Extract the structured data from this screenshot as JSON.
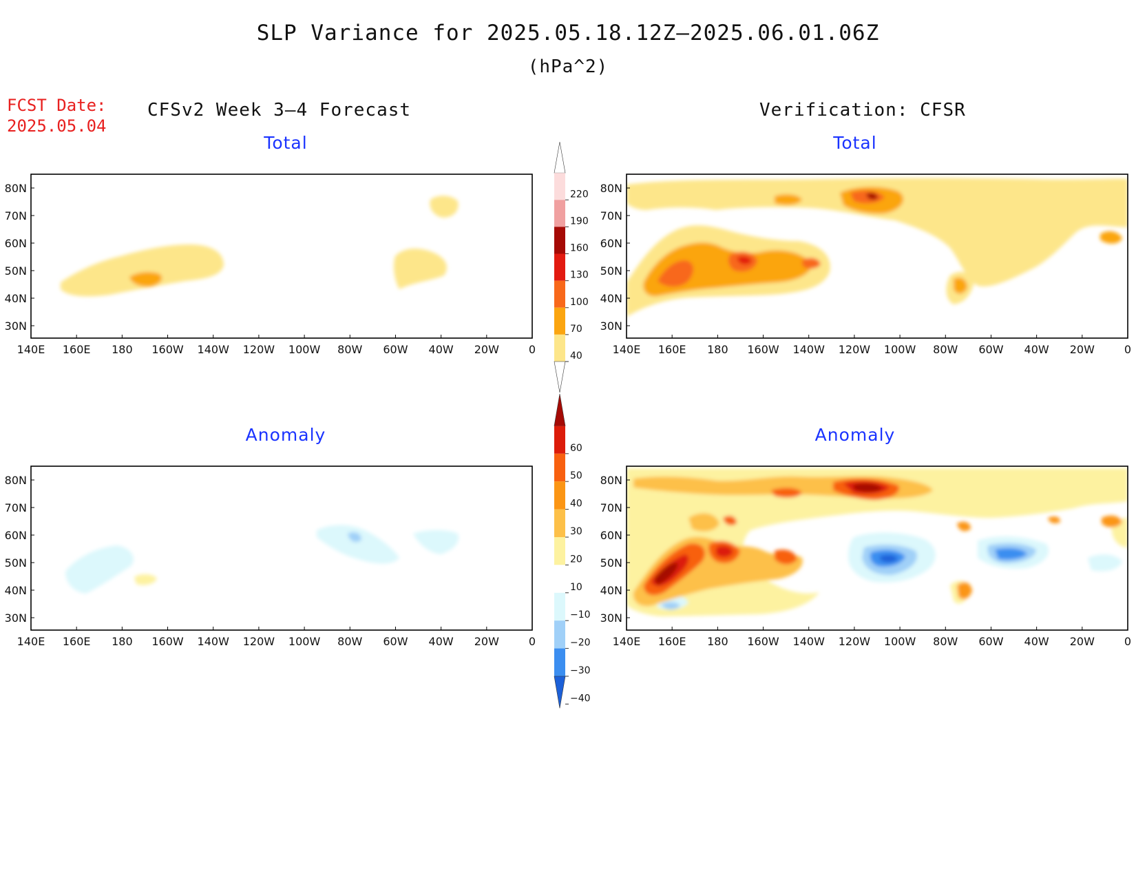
{
  "title": "SLP Variance for 2025.05.18.12Z–2025.06.01.06Z",
  "units": "(hPa^2)",
  "fcst_date_label": "FCST Date:",
  "fcst_date_value": "2025.05.04",
  "left_heading": "CFSv2 Week 3–4 Forecast",
  "right_heading": "Verification: CFSR",
  "panels": {
    "top_left_title": "Total",
    "top_right_title": "Total",
    "bottom_left_title": "Anomaly",
    "bottom_right_title": "Anomaly"
  },
  "lat_labels": [
    "80N",
    "70N",
    "60N",
    "50N",
    "40N",
    "30N"
  ],
  "lon_labels": [
    "140E",
    "160E",
    "180",
    "160W",
    "140W",
    "120W",
    "100W",
    "80W",
    "60W",
    "40W",
    "20W",
    "0"
  ],
  "colorbar_total": {
    "levels": [
      "40",
      "70",
      "100",
      "130",
      "160",
      "190",
      "220"
    ],
    "colors": [
      "#fde68a",
      "#fba510",
      "#f8681a",
      "#e21a10",
      "#a50a05",
      "#f0a0a0",
      "#fcdcdc"
    ]
  },
  "colorbar_anomaly": {
    "levels": [
      "−40",
      "−30",
      "−20",
      "−10",
      "10",
      "20",
      "30",
      "40",
      "50",
      "60"
    ],
    "colors": [
      "#1c60d8",
      "#3b8ef0",
      "#a0d0f8",
      "#dcf8fc",
      "#ffffff",
      "#fdf2a0",
      "#fdc048",
      "#fb9514",
      "#f8600f",
      "#dc1c0a",
      "#a50a05"
    ]
  }
}
